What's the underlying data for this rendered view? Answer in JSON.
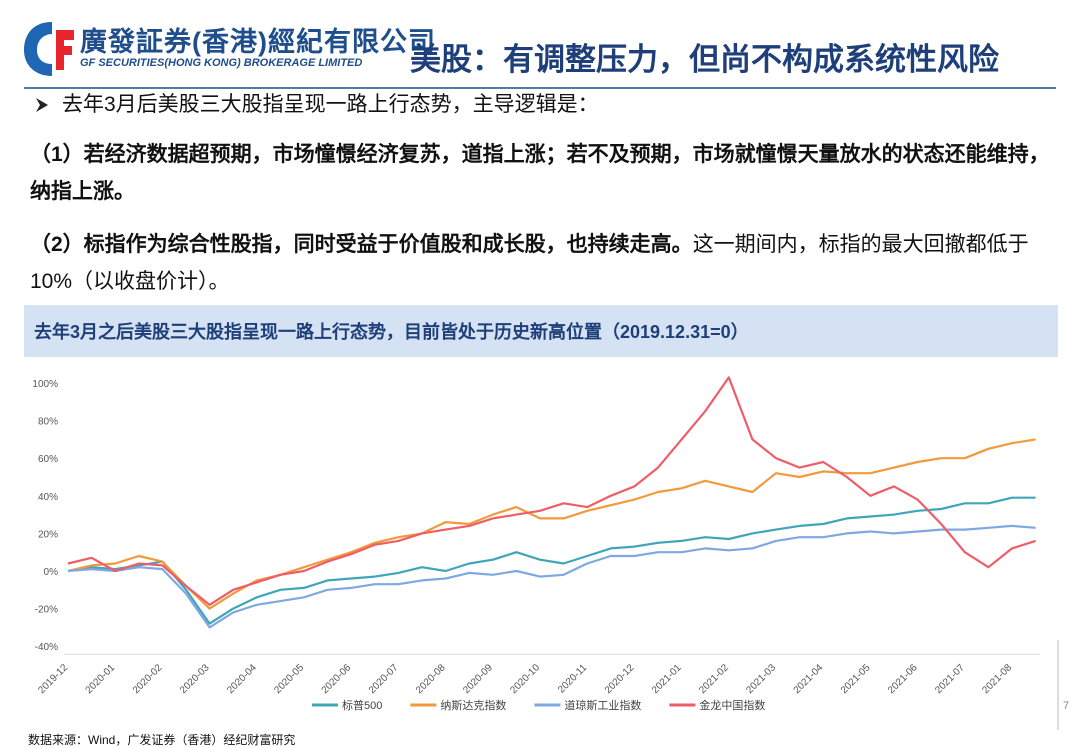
{
  "header": {
    "company_cn": "廣發証券(香港)經紀有限公司",
    "company_en": "GF SECURITIES(HONG KONG) BROKERAGE LIMITED",
    "title": "美股：有调整压力，但尚不构成系统性风险"
  },
  "bullets": {
    "intro": "去年3月后美股三大股指呈现一路上行态势，主导逻辑是：",
    "point1": "（1）若经济数据超预期，市场憧憬经济复苏，道指上涨；若不及预期，市场就憧憬天量放水的状态还能维持，纳指上涨。",
    "point2_bold": "（2）标指作为综合性股指，同时受益于价值股和成长股，也持续走高。",
    "point2_rest": "这一期间内，标指的最大回撤都低于10%（以收盘价计）。"
  },
  "chart_data": {
    "type": "line",
    "title": "去年3月之后美股三大股指呈现一路上行态势，目前皆处于历史新高位置（2019.12.31=0）",
    "categories": [
      "2019-12",
      null,
      "2020-01",
      null,
      "2020-02",
      null,
      "2020-03",
      null,
      "2020-04",
      null,
      "2020-05",
      null,
      "2020-06",
      null,
      "2020-07",
      null,
      "2020-08",
      null,
      "2020-09",
      null,
      "2020-10",
      null,
      "2020-11",
      null,
      "2020-12",
      null,
      "2021-01",
      null,
      "2021-02",
      null,
      "2021-03",
      null,
      "2021-04",
      null,
      "2021-05",
      null,
      "2021-06",
      null,
      "2021-07",
      null,
      "2021-08",
      null
    ],
    "series": [
      {
        "name": "标普500",
        "color": "#3ea6b8",
        "values": [
          0,
          2,
          1,
          3,
          5,
          -10,
          -28,
          -20,
          -14,
          -10,
          -9,
          -5,
          -4,
          -3,
          -1,
          2,
          0,
          4,
          6,
          10,
          6,
          4,
          8,
          12,
          13,
          15,
          16,
          18,
          17,
          20,
          22,
          24,
          25,
          28,
          29,
          30,
          32,
          33,
          36,
          36,
          39,
          39
        ]
      },
      {
        "name": "纳斯达克指数",
        "color": "#f29a3a",
        "values": [
          0,
          3,
          4,
          8,
          5,
          -8,
          -20,
          -12,
          -5,
          -2,
          2,
          6,
          10,
          15,
          18,
          20,
          26,
          25,
          30,
          34,
          28,
          28,
          32,
          35,
          38,
          42,
          44,
          48,
          45,
          42,
          52,
          50,
          53,
          52,
          52,
          55,
          58,
          60,
          60,
          65,
          68,
          70
        ]
      },
      {
        "name": "道琼斯工业指数",
        "color": "#7fa8e2",
        "values": [
          0,
          1,
          0,
          2,
          1,
          -12,
          -30,
          -22,
          -18,
          -16,
          -14,
          -10,
          -9,
          -7,
          -7,
          -5,
          -4,
          -1,
          -2,
          0,
          -3,
          -2,
          4,
          8,
          8,
          10,
          10,
          12,
          11,
          12,
          16,
          18,
          18,
          20,
          21,
          20,
          21,
          22,
          22,
          23,
          24,
          23
        ]
      },
      {
        "name": "金龙中国指数",
        "color": "#ee5d68",
        "values": [
          4,
          7,
          0,
          4,
          3,
          -8,
          -18,
          -10,
          -6,
          -2,
          0,
          5,
          9,
          14,
          16,
          20,
          22,
          24,
          28,
          30,
          32,
          36,
          34,
          40,
          45,
          55,
          70,
          85,
          103,
          70,
          60,
          55,
          58,
          50,
          40,
          45,
          38,
          25,
          10,
          2,
          12,
          16
        ]
      }
    ],
    "ylim": [
      -40,
      106
    ],
    "yticks": [
      {
        "value": -40,
        "label": "-40%"
      },
      {
        "value": -20,
        "label": "-20%"
      },
      {
        "value": 0,
        "label": "0%"
      },
      {
        "value": 20,
        "label": "20%"
      },
      {
        "value": 40,
        "label": "40%"
      },
      {
        "value": 60,
        "label": "60%"
      },
      {
        "value": 80,
        "label": "80%"
      },
      {
        "value": 100,
        "label": "100%"
      }
    ],
    "grid": false,
    "legend": "bottom"
  },
  "source": "数据来源：Wind，广发证券（香港）经纪财富研究",
  "page_number": "7"
}
